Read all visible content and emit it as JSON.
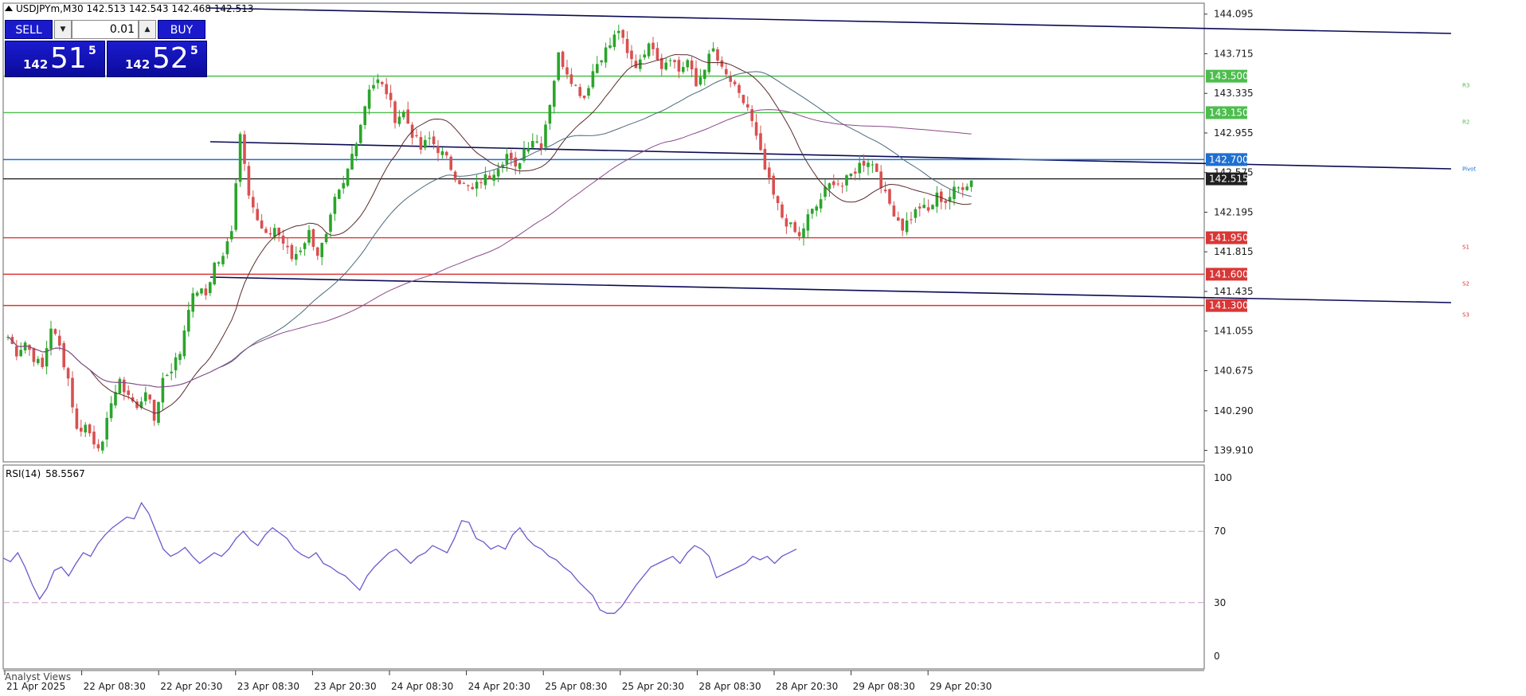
{
  "header": {
    "symbol": "USDJPYm,M30",
    "ohlc": "142.513 142.543 142.468 142.513"
  },
  "trade_panel": {
    "sell_label": "SELL",
    "buy_label": "BUY",
    "lot_value": "0.01",
    "sell_small": "142",
    "sell_big": "51",
    "sell_sup": "5",
    "buy_small": "142",
    "buy_big": "52",
    "buy_sup": "5",
    "color": "#1a1acc"
  },
  "rsi_panel": {
    "name": "RSI(14)",
    "value": "58.5567"
  },
  "analyst_tab": "Analyst Views",
  "chart_data": [
    {
      "type": "candlestick",
      "title": "USDJPYm,M30",
      "ylim": [
        139.8,
        144.2
      ],
      "y_ticks": [
        "144.095",
        "143.715",
        "143.335",
        "142.955",
        "142.575",
        "142.195",
        "141.815",
        "141.435",
        "141.055",
        "140.675",
        "140.290",
        "139.910"
      ],
      "x_ticks": [
        "21 Apr 2025",
        "22 Apr 08:30",
        "22 Apr 20:30",
        "23 Apr 08:30",
        "23 Apr 20:30",
        "24 Apr 08:30",
        "24 Apr 20:30",
        "25 Apr 08:30",
        "25 Apr 20:30",
        "28 Apr 08:30",
        "28 Apr 20:30",
        "29 Apr 08:30",
        "29 Apr 20:30"
      ],
      "close_path": [
        [
          0,
          141.0
        ],
        [
          2,
          140.85
        ],
        [
          4,
          140.95
        ],
        [
          6,
          140.8
        ],
        [
          8,
          140.7
        ],
        [
          10,
          141.1
        ],
        [
          12,
          140.9
        ],
        [
          14,
          140.6
        ],
        [
          16,
          140.1
        ],
        [
          18,
          140.15
        ],
        [
          20,
          140.0
        ],
        [
          22,
          139.95
        ],
        [
          24,
          140.4
        ],
        [
          26,
          140.55
        ],
        [
          28,
          140.45
        ],
        [
          30,
          140.3
        ],
        [
          32,
          140.5
        ],
        [
          34,
          140.2
        ],
        [
          36,
          140.6
        ],
        [
          38,
          140.7
        ],
        [
          40,
          140.85
        ],
        [
          42,
          141.3
        ],
        [
          44,
          141.45
        ],
        [
          46,
          141.4
        ],
        [
          48,
          141.7
        ],
        [
          50,
          141.75
        ],
        [
          52,
          142.05
        ],
        [
          54,
          142.95
        ],
        [
          55,
          142.7
        ],
        [
          56,
          142.4
        ],
        [
          58,
          142.1
        ],
        [
          60,
          141.95
        ],
        [
          62,
          142.05
        ],
        [
          64,
          141.9
        ],
        [
          66,
          141.75
        ],
        [
          68,
          141.85
        ],
        [
          70,
          142.0
        ],
        [
          72,
          141.8
        ],
        [
          74,
          141.95
        ],
        [
          76,
          142.3
        ],
        [
          78,
          142.45
        ],
        [
          80,
          142.75
        ],
        [
          82,
          143.05
        ],
        [
          84,
          143.4
        ],
        [
          86,
          143.45
        ],
        [
          88,
          143.35
        ],
        [
          90,
          143.1
        ],
        [
          92,
          143.15
        ],
        [
          94,
          142.95
        ],
        [
          96,
          142.8
        ],
        [
          98,
          142.9
        ],
        [
          100,
          142.8
        ],
        [
          102,
          142.7
        ],
        [
          104,
          142.55
        ],
        [
          106,
          142.45
        ],
        [
          108,
          142.4
        ],
        [
          110,
          142.5
        ],
        [
          112,
          142.55
        ],
        [
          114,
          142.65
        ],
        [
          116,
          142.75
        ],
        [
          118,
          142.6
        ],
        [
          120,
          142.8
        ],
        [
          122,
          142.9
        ],
        [
          124,
          142.85
        ],
        [
          126,
          143.25
        ],
        [
          128,
          143.7
        ],
        [
          130,
          143.55
        ],
        [
          132,
          143.4
        ],
        [
          134,
          143.3
        ],
        [
          136,
          143.55
        ],
        [
          138,
          143.7
        ],
        [
          140,
          143.8
        ],
        [
          142,
          143.95
        ],
        [
          144,
          143.7
        ],
        [
          146,
          143.6
        ],
        [
          148,
          143.75
        ],
        [
          150,
          143.8
        ],
        [
          152,
          143.6
        ],
        [
          154,
          143.7
        ],
        [
          156,
          143.55
        ],
        [
          158,
          143.65
        ],
        [
          160,
          143.4
        ],
        [
          162,
          143.6
        ],
        [
          164,
          143.75
        ],
        [
          166,
          143.55
        ],
        [
          168,
          143.45
        ],
        [
          170,
          143.3
        ],
        [
          172,
          143.2
        ],
        [
          174,
          142.9
        ],
        [
          176,
          142.6
        ],
        [
          178,
          142.35
        ],
        [
          180,
          142.15
        ],
        [
          182,
          142.05
        ],
        [
          184,
          141.95
        ],
        [
          186,
          142.15
        ],
        [
          188,
          142.25
        ],
        [
          190,
          142.4
        ],
        [
          192,
          142.5
        ],
        [
          194,
          142.45
        ],
        [
          196,
          142.55
        ],
        [
          198,
          142.65
        ],
        [
          200,
          142.7
        ],
        [
          202,
          142.6
        ],
        [
          204,
          142.35
        ],
        [
          206,
          142.2
        ],
        [
          208,
          142.05
        ],
        [
          210,
          142.15
        ],
        [
          212,
          142.25
        ],
        [
          214,
          142.2
        ],
        [
          216,
          142.35
        ],
        [
          218,
          142.3
        ],
        [
          220,
          142.4
        ],
        [
          222,
          142.45
        ],
        [
          224,
          142.5
        ]
      ],
      "horizontal_levels": [
        {
          "label": "143.500",
          "value": 143.5,
          "color": "#4dbd4d",
          "name": "R3"
        },
        {
          "label": "143.150",
          "value": 143.15,
          "color": "#4dbd4d",
          "name": "R2"
        },
        {
          "label": "142.700",
          "value": 142.7,
          "color": "#1f6fd1",
          "name": "Pivot"
        },
        {
          "label": "142.515",
          "value": 142.515,
          "color": "#202020",
          "name": ""
        },
        {
          "label": "141.950",
          "value": 141.95,
          "color": "#d93636",
          "name": "S1"
        },
        {
          "label": "141.600",
          "value": 141.6,
          "color": "#d93636",
          "name": "S2"
        },
        {
          "label": "141.300",
          "value": 141.3,
          "color": "#d93636",
          "name": "S3"
        }
      ],
      "level_marks": [
        "R3",
        "R2",
        "Pivot",
        "S1",
        "S2",
        "S3"
      ],
      "channel_color": "#0a0a55",
      "up_color": "#2aa52a",
      "down_color": "#d95050"
    },
    {
      "type": "line",
      "title": "RSI(14) 58.5567",
      "ylim": [
        0,
        100
      ],
      "y_ticks": [
        "100",
        "70",
        "30",
        "0"
      ],
      "levels": [
        70,
        30
      ],
      "color": "#6a5acd",
      "values": [
        55,
        53,
        58,
        50,
        40,
        32,
        38,
        48,
        50,
        45,
        52,
        58,
        56,
        63,
        68,
        72,
        75,
        78,
        77,
        86,
        80,
        70,
        60,
        56,
        58,
        61,
        56,
        52,
        55,
        58,
        56,
        60,
        66,
        70,
        65,
        62,
        68,
        72,
        69,
        66,
        60,
        57,
        55,
        58,
        52,
        50,
        47,
        45,
        41,
        37,
        45,
        50,
        54,
        58,
        60,
        56,
        52,
        56,
        58,
        62,
        60,
        58,
        66,
        76,
        75,
        66,
        64,
        60,
        62,
        60,
        68,
        72,
        66,
        62,
        60,
        56,
        54,
        50,
        47,
        42,
        38,
        34,
        26,
        24,
        24,
        28,
        34,
        40,
        45,
        50,
        52,
        54,
        56,
        52,
        58,
        62,
        60,
        56,
        44,
        46,
        48,
        50,
        52,
        56,
        54,
        56,
        52,
        56,
        58,
        60
      ]
    }
  ]
}
